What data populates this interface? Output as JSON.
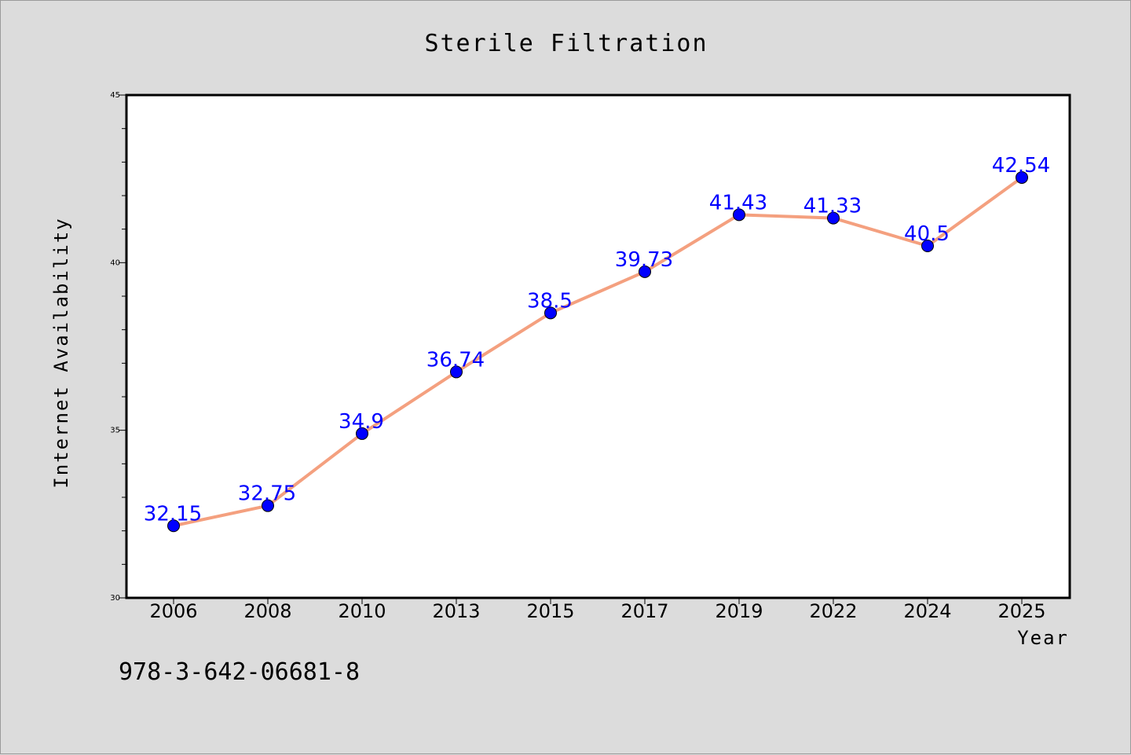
{
  "chart_data": {
    "type": "line",
    "title": "Sterile Filtration",
    "xlabel": "Year",
    "ylabel": "Internet Availability",
    "categories": [
      "2006",
      "2008",
      "2010",
      "2013",
      "2015",
      "2017",
      "2019",
      "2022",
      "2024",
      "2025"
    ],
    "series": [
      {
        "values": [
          32.15,
          32.75,
          34.9,
          36.74,
          38.5,
          39.73,
          41.43,
          41.33,
          40.5,
          42.54
        ],
        "labels": [
          "32.15",
          "32.75",
          "34.9",
          "36.74",
          "38.5",
          "39.73",
          "41.43",
          "41.33",
          "40.5",
          "42.54"
        ],
        "line_color": "#f4a07f",
        "marker_color": "#0000ff"
      }
    ],
    "ylim": [
      30,
      45
    ],
    "yticks": [
      "30",
      "35",
      "40",
      "45"
    ],
    "y_minor_step": 1,
    "grid": false,
    "legend": "none"
  },
  "footnote": "978-3-642-06681-8",
  "colors": {
    "background": "#dcdcdc",
    "plot_area": "#ffffff",
    "line": "#f4a07f",
    "marker": "#0000ff",
    "data_label": "#0000ff"
  }
}
